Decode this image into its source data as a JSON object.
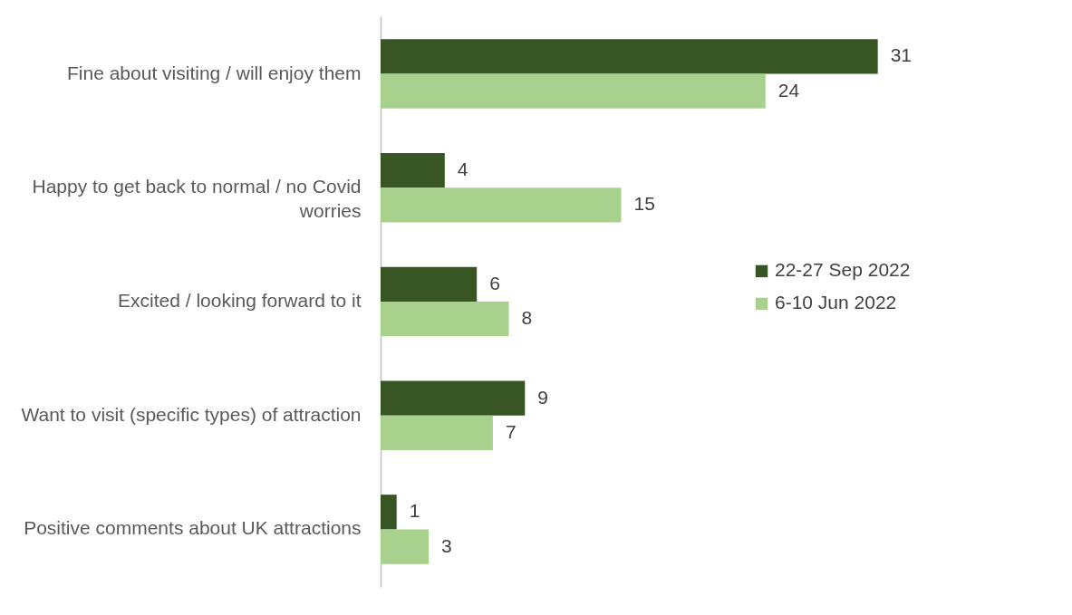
{
  "chart_data": {
    "type": "bar",
    "orientation": "horizontal",
    "categories": [
      "Fine about visiting / will enjoy them",
      "Happy to get back to normal / no Covid worries",
      "Excited / looking forward to it",
      "Want to visit (specific types) of attraction",
      "Positive comments about UK attractions"
    ],
    "series": [
      {
        "name": "22-27 Sep 2022",
        "color": "#375623",
        "values": [
          31,
          4,
          6,
          9,
          1
        ]
      },
      {
        "name": "6-10 Jun 2022",
        "color": "#a9d18e",
        "values": [
          24,
          15,
          8,
          7,
          3
        ]
      }
    ],
    "data_labels": true,
    "legend": "right"
  }
}
